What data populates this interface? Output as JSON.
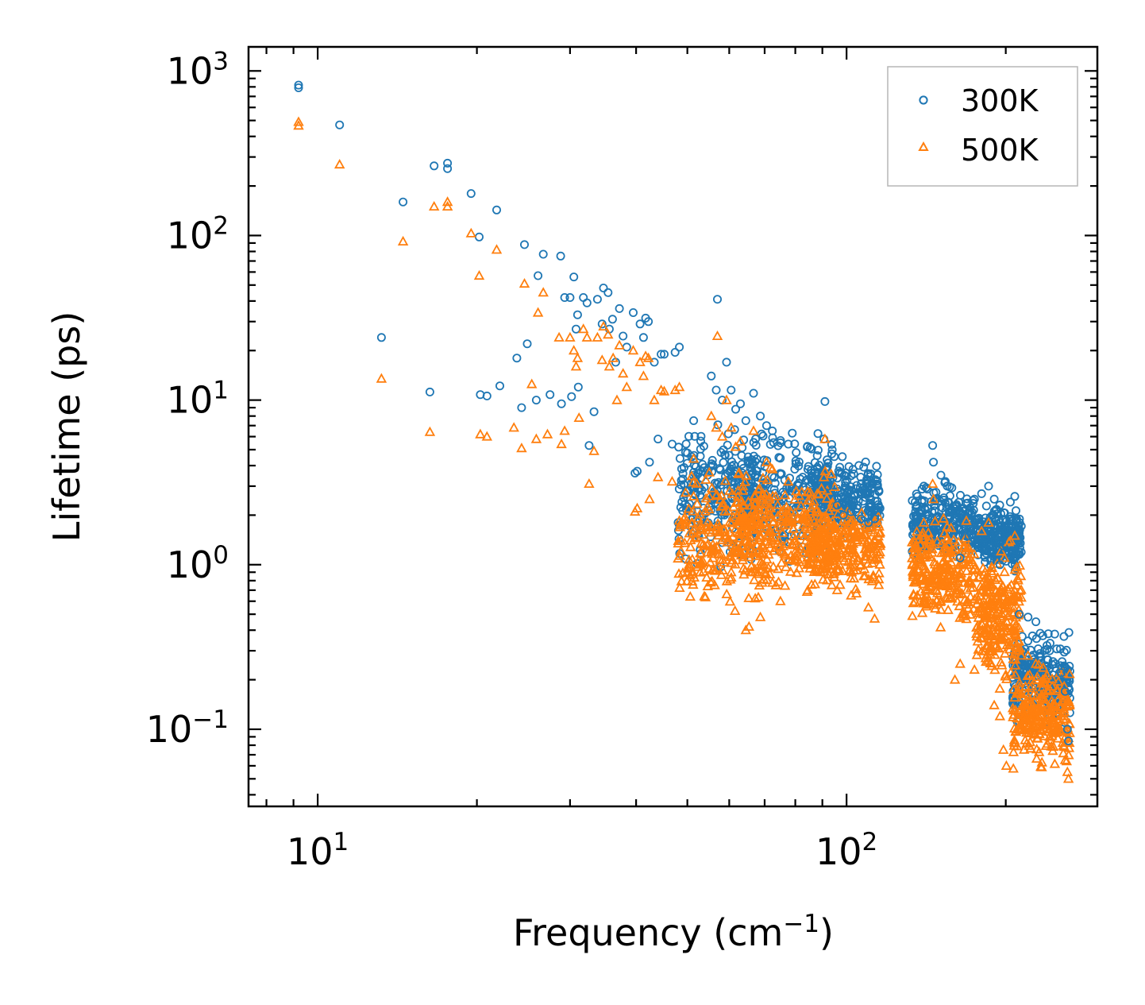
{
  "chart_data": {
    "type": "scatter",
    "xscale": "log",
    "yscale": "log",
    "xlabel": "Frequency (cm",
    "xlabel_sup": "−1",
    "xlabel_suffix": ")",
    "ylabel": "Lifetime (ps)",
    "xlim": [
      7.4,
      298
    ],
    "ylim": [
      0.034,
      1400
    ],
    "legend_position": "top-right",
    "xticks": [
      {
        "value": 10,
        "base": "10",
        "exp": "1"
      },
      {
        "value": 100,
        "base": "10",
        "exp": "2"
      }
    ],
    "yticks": [
      {
        "value": 0.1,
        "base": "10",
        "exp": "−1"
      },
      {
        "value": 1,
        "base": "10",
        "exp": "0"
      },
      {
        "value": 10,
        "base": "10",
        "exp": "1"
      },
      {
        "value": 100,
        "base": "10",
        "exp": "2"
      },
      {
        "value": 1000,
        "base": "10",
        "exp": "3"
      }
    ],
    "series": [
      {
        "name": "300K",
        "color": "#1f77b4",
        "marker": "circle",
        "points": [
          [
            9.2,
            820
          ],
          [
            9.2,
            790
          ],
          [
            11.0,
            470
          ],
          [
            13.2,
            24
          ],
          [
            14.5,
            160
          ],
          [
            16.3,
            11.2
          ],
          [
            16.6,
            265
          ],
          [
            17.6,
            275
          ],
          [
            17.6,
            255
          ],
          [
            19.5,
            180
          ],
          [
            20.2,
            98
          ],
          [
            20.3,
            10.8
          ],
          [
            20.9,
            10.6
          ],
          [
            21.8,
            143
          ],
          [
            22.1,
            12.2
          ],
          [
            23.8,
            18
          ],
          [
            24.3,
            9
          ],
          [
            24.6,
            88
          ],
          [
            24.9,
            22
          ],
          [
            25.9,
            10
          ],
          [
            26.1,
            57
          ],
          [
            26.7,
            77
          ],
          [
            27.5,
            10.8
          ],
          [
            28.8,
            75
          ],
          [
            28.9,
            9.5
          ],
          [
            29.3,
            42
          ],
          [
            30.0,
            42
          ],
          [
            30.2,
            10.5
          ],
          [
            30.5,
            56
          ],
          [
            30.8,
            27
          ],
          [
            31.0,
            33
          ],
          [
            31.1,
            12
          ],
          [
            31.8,
            42
          ],
          [
            32.3,
            39
          ],
          [
            32.6,
            5.3
          ],
          [
            33.3,
            8.5
          ],
          [
            33.8,
            41
          ],
          [
            34.5,
            29
          ],
          [
            34.7,
            48
          ],
          [
            35.4,
            45
          ],
          [
            35.6,
            27
          ],
          [
            36.1,
            31
          ],
          [
            36.6,
            17
          ],
          [
            37.2,
            36
          ],
          [
            37.8,
            24.5
          ],
          [
            38.4,
            21
          ],
          [
            39.5,
            34
          ],
          [
            39.8,
            3.6
          ],
          [
            40.2,
            3.7
          ],
          [
            40.7,
            29
          ],
          [
            41.3,
            24
          ],
          [
            41.7,
            31.5
          ],
          [
            42.2,
            30
          ],
          [
            42.4,
            4.2
          ],
          [
            43.3,
            17
          ],
          [
            44.0,
            5.8
          ],
          [
            44.6,
            19
          ],
          [
            45.2,
            19
          ],
          [
            46.8,
            5.4
          ],
          [
            47.4,
            19.5
          ],
          [
            48.3,
            21
          ],
          [
            51.4,
            7.5
          ],
          [
            55.5,
            14
          ],
          [
            56.7,
            11.5
          ],
          [
            57.0,
            41
          ],
          [
            58.2,
            10
          ],
          [
            59.3,
            17
          ],
          [
            60.5,
            11.5
          ],
          [
            61.7,
            8.8
          ],
          [
            63.0,
            9.5
          ],
          [
            64.5,
            7.5
          ],
          [
            66.7,
            11
          ],
          [
            68.7,
            8
          ],
          [
            70.6,
            7
          ],
          [
            72.4,
            6.5
          ],
          [
            75.0,
            5.5
          ],
          [
            77.6,
            5.4
          ],
          [
            80.3,
            4.8
          ],
          [
            84.5,
            3.8
          ],
          [
            88.0,
            4.6
          ],
          [
            90.6,
            5.8
          ],
          [
            91.0,
            9.8
          ],
          [
            92.3,
            3
          ],
          [
            96.0,
            2.3
          ],
          [
            98.6,
            2
          ],
          [
            102.0,
            2.1
          ],
          [
            106.5,
            1.9
          ],
          [
            110.0,
            1.8
          ],
          [
            113.0,
            1.9
          ],
          [
            115.7,
            2.2
          ],
          [
            135.0,
            2.1
          ],
          [
            140.0,
            3
          ],
          [
            145.5,
            5.3
          ],
          [
            146.0,
            4.2
          ],
          [
            150.8,
            3.5
          ],
          [
            155.0,
            3
          ],
          [
            160.3,
            1.9
          ],
          [
            164.0,
            1.1
          ],
          [
            170.4,
            1.5
          ],
          [
            174.5,
            2.5
          ],
          [
            180.0,
            2.7
          ],
          [
            185.6,
            3
          ],
          [
            190.2,
            2.5
          ],
          [
            195.0,
            1
          ],
          [
            198.0,
            1.3
          ],
          [
            200.5,
            1.6
          ],
          [
            204.0,
            2.4
          ],
          [
            208.0,
            2.6
          ],
          [
            212.0,
            0.5
          ],
          [
            220.4,
            0.48
          ],
          [
            228.0,
            0.45
          ],
          [
            235.0,
            0.37
          ],
          [
            242.0,
            0.3
          ],
          [
            248.0,
            0.25
          ],
          [
            254.5,
            0.22
          ],
          [
            259.0,
            0.17
          ],
          [
            261.6,
            0.1
          ],
          [
            262.8,
            0.085
          ]
        ],
        "bands": [
          {
            "x": [
              48,
              68
            ],
            "y": [
              0.8,
              9
            ]
          },
          {
            "x": [
              62,
              95
            ],
            "y": [
              0.9,
              8
            ]
          },
          {
            "x": [
              85,
              116
            ],
            "y": [
              1.2,
              5
            ]
          },
          {
            "x": [
              133,
              175
            ],
            "y": [
              0.9,
              3.5
            ]
          },
          {
            "x": [
              176,
              214
            ],
            "y": [
              0.8,
              2.7
            ]
          },
          {
            "x": [
              206,
              265
            ],
            "y": [
              0.09,
              0.45
            ]
          }
        ]
      },
      {
        "name": "500K",
        "color": "#ff7f0e",
        "marker": "triangle",
        "points": [
          [
            9.2,
            490
          ],
          [
            9.2,
            465
          ],
          [
            11.0,
            270
          ],
          [
            13.2,
            13.5
          ],
          [
            14.5,
            92
          ],
          [
            16.3,
            6.4
          ],
          [
            16.6,
            150
          ],
          [
            17.6,
            160
          ],
          [
            17.6,
            150
          ],
          [
            19.5,
            103
          ],
          [
            20.2,
            57
          ],
          [
            20.3,
            6.2
          ],
          [
            20.9,
            6
          ],
          [
            21.8,
            82
          ],
          [
            23.5,
            6.8
          ],
          [
            24.3,
            5.1
          ],
          [
            24.6,
            51
          ],
          [
            25.4,
            12.5
          ],
          [
            25.9,
            5.8
          ],
          [
            26.1,
            34
          ],
          [
            26.7,
            45
          ],
          [
            27.2,
            6.2
          ],
          [
            28.6,
            24
          ],
          [
            28.9,
            5.4
          ],
          [
            29.3,
            6.5
          ],
          [
            30.0,
            24
          ],
          [
            30.5,
            20
          ],
          [
            30.8,
            16
          ],
          [
            31.0,
            18
          ],
          [
            31.2,
            7.8
          ],
          [
            31.8,
            27
          ],
          [
            32.3,
            24
          ],
          [
            32.6,
            3.1
          ],
          [
            33.3,
            4.9
          ],
          [
            33.8,
            24
          ],
          [
            34.5,
            17.5
          ],
          [
            34.7,
            28
          ],
          [
            35.4,
            25
          ],
          [
            35.6,
            16
          ],
          [
            36.2,
            18
          ],
          [
            36.8,
            10
          ],
          [
            37.2,
            21.5
          ],
          [
            37.8,
            14.5
          ],
          [
            38.4,
            12
          ],
          [
            39.5,
            20
          ],
          [
            39.8,
            2.1
          ],
          [
            40.2,
            2.2
          ],
          [
            40.7,
            17
          ],
          [
            41.3,
            14
          ],
          [
            41.7,
            18.5
          ],
          [
            42.2,
            18
          ],
          [
            42.4,
            2.5
          ],
          [
            43.3,
            10
          ],
          [
            44.0,
            3.4
          ],
          [
            44.6,
            11.5
          ],
          [
            45.2,
            11.3
          ],
          [
            46.8,
            3.2
          ],
          [
            47.4,
            11.5
          ],
          [
            48.3,
            12
          ],
          [
            51.4,
            4.4
          ],
          [
            55.5,
            8
          ],
          [
            56.7,
            6.8
          ],
          [
            57.0,
            24.5
          ],
          [
            58.2,
            6
          ],
          [
            59.3,
            10
          ],
          [
            60.5,
            6.8
          ],
          [
            61.7,
            5.2
          ],
          [
            63.0,
            5.6
          ],
          [
            64.5,
            0.4
          ],
          [
            65.4,
            0.42
          ],
          [
            66.7,
            6.5
          ],
          [
            68.7,
            0.48
          ],
          [
            70.6,
            4.2
          ],
          [
            72.4,
            3.8
          ],
          [
            75.0,
            0.6
          ],
          [
            77.6,
            3.2
          ],
          [
            80.3,
            2.8
          ],
          [
            84.5,
            0.7
          ],
          [
            88.0,
            2.7
          ],
          [
            90.6,
            3.4
          ],
          [
            91.0,
            5.8
          ],
          [
            92.3,
            1.7
          ],
          [
            96.0,
            0.7
          ],
          [
            98.6,
            1.1
          ],
          [
            102.0,
            0.65
          ],
          [
            106.5,
            1
          ],
          [
            110.0,
            0.55
          ],
          [
            113.0,
            0.47
          ],
          [
            115.7,
            1.3
          ],
          [
            135.0,
            1
          ],
          [
            140.0,
            1.8
          ],
          [
            145.5,
            3.1
          ],
          [
            146.0,
            2.5
          ],
          [
            150.8,
            0.6
          ],
          [
            155.0,
            1.7
          ],
          [
            160.3,
            0.2
          ],
          [
            164.0,
            0.25
          ],
          [
            170.4,
            0.8
          ],
          [
            174.5,
            0.23
          ],
          [
            176.0,
            0.38
          ],
          [
            180.0,
            1.6
          ],
          [
            185.6,
            1.8
          ],
          [
            190.2,
            0.14
          ],
          [
            195.0,
            0.12
          ],
          [
            198.0,
            0.075
          ],
          [
            200.5,
            0.06
          ],
          [
            204.0,
            1.4
          ],
          [
            208.0,
            1.5
          ],
          [
            212.0,
            0.3
          ],
          [
            220.4,
            0.28
          ],
          [
            228.0,
            0.25
          ],
          [
            235.0,
            0.2
          ],
          [
            242.0,
            0.09
          ],
          [
            248.0,
            0.14
          ],
          [
            254.5,
            0.12
          ],
          [
            259.0,
            0.065
          ],
          [
            261.6,
            0.055
          ],
          [
            262.8,
            0.05
          ]
        ],
        "bands": [
          {
            "x": [
              48,
              72
            ],
            "y": [
              0.45,
              5
            ]
          },
          {
            "x": [
              62,
              95
            ],
            "y": [
              0.5,
              4.5
            ]
          },
          {
            "x": [
              85,
              116
            ],
            "y": [
              0.6,
              2.8
            ]
          },
          {
            "x": [
              133,
              175
            ],
            "y": [
              0.35,
              2.2
            ]
          },
          {
            "x": [
              176,
              214
            ],
            "y": [
              0.15,
              1.6
            ]
          },
          {
            "x": [
              206,
              265
            ],
            "y": [
              0.05,
              0.3
            ]
          }
        ]
      }
    ]
  }
}
